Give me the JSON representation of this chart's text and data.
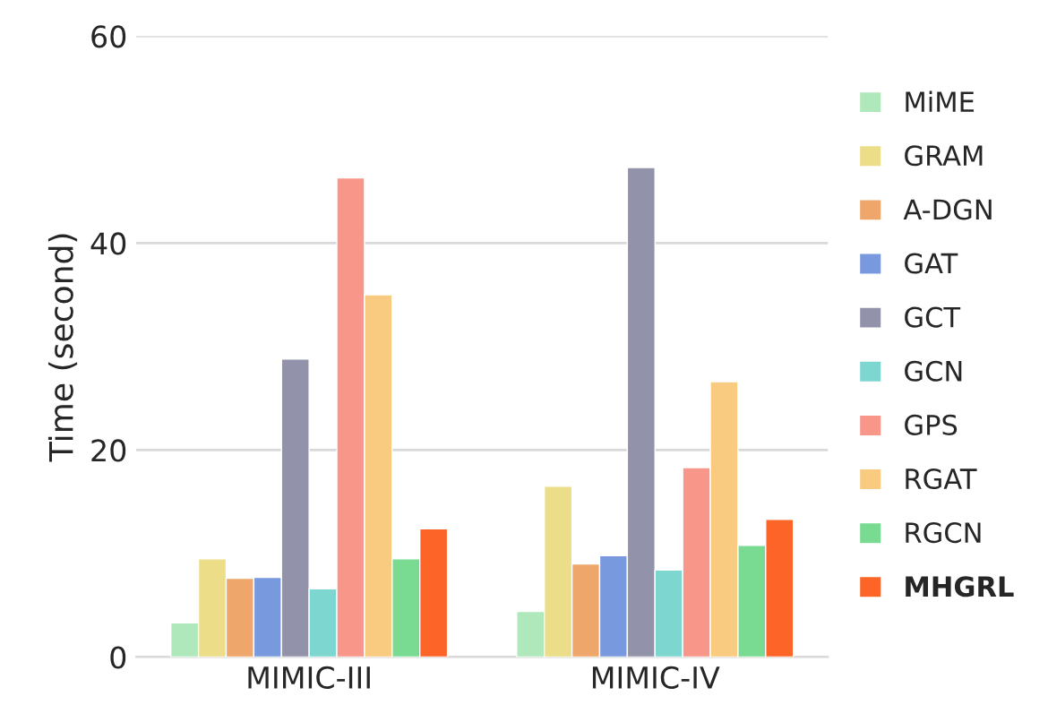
{
  "chart_data": {
    "type": "bar",
    "ylabel": "Time (second)",
    "categories": [
      "MIMIC-III",
      "MIMIC-IV"
    ],
    "series": [
      {
        "name": "MiME",
        "color": "#aee8bb",
        "values": [
          3.3,
          4.4
        ]
      },
      {
        "name": "GRAM",
        "color": "#ecdd88",
        "values": [
          9.5,
          16.5
        ]
      },
      {
        "name": "A-DGN",
        "color": "#eea66a",
        "values": [
          7.6,
          9.0
        ]
      },
      {
        "name": "GAT",
        "color": "#7899de",
        "values": [
          7.7,
          9.8
        ]
      },
      {
        "name": "GCT",
        "color": "#9293ab",
        "values": [
          28.8,
          47.3
        ]
      },
      {
        "name": "GCN",
        "color": "#7dd6cf",
        "values": [
          6.6,
          8.4
        ]
      },
      {
        "name": "GPS",
        "color": "#f8968a",
        "values": [
          46.3,
          18.3
        ]
      },
      {
        "name": "RGAT",
        "color": "#f8cb80",
        "values": [
          35.0,
          26.6
        ]
      },
      {
        "name": "RGCN",
        "color": "#79db92",
        "values": [
          9.5,
          10.8
        ]
      },
      {
        "name": "MHGRL",
        "color": "#fd6428",
        "values": [
          12.4,
          13.3
        ]
      }
    ],
    "ylim": [
      0,
      60
    ],
    "yticks": [
      0,
      20,
      40,
      60
    ],
    "grid": "y",
    "legend": "right"
  }
}
